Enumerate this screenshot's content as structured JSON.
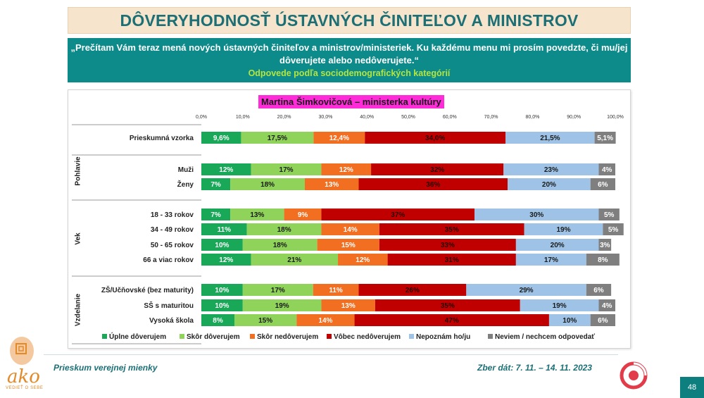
{
  "header": {
    "title": "DÔVERYHODNOSŤ ÚSTAVNÝCH ČINITEĽOV A MINISTROV",
    "question": "„Prečítam Vám teraz mená nových ústavných činiteľov a ministrov/ministeriek. Ku každému menu mi prosím povedzte, či mu/jej dôverujete alebo nedôverujete.“",
    "subtitle": "Odpovede podľa sociodemografických kategórií"
  },
  "chart_data": {
    "type": "bar",
    "orientation": "horizontal",
    "stacked": true,
    "percent_stacked": true,
    "title": "Martina Šimkovičová – ministerka kultúry",
    "xlim": [
      0,
      100
    ],
    "x_ticks": [
      "0,0%",
      "10,0%",
      "20,0%",
      "30,0%",
      "40,0%",
      "50,0%",
      "60,0%",
      "70,0%",
      "80,0%",
      "90,0%",
      "100,0%"
    ],
    "legend_position": "bottom",
    "series": [
      {
        "name": "Úplne dôverujem",
        "color": "#18a857"
      },
      {
        "name": "Skôr dôverujem",
        "color": "#8fd35a"
      },
      {
        "name": "Skôr nedôverujem",
        "color": "#f26f22"
      },
      {
        "name": "Vôbec nedôverujem",
        "color": "#c00000"
      },
      {
        "name": "Nepoznám ho/ju",
        "color": "#9ec3e6"
      },
      {
        "name": "Neviem / nechcem odpovedať",
        "color": "#7f7f7f"
      }
    ],
    "groups": [
      {
        "name": "",
        "rows": [
          {
            "label": "Prieskumná vzorka",
            "values": [
              9.6,
              17.5,
              12.4,
              34.0,
              21.5,
              5.1
            ],
            "labels": [
              "9,6%",
              "17,5%",
              "12,4%",
              "34,0%",
              "21,5%",
              "5,1%"
            ]
          }
        ]
      },
      {
        "name": "Pohlavie",
        "rows": [
          {
            "label": "Muži",
            "values": [
              12,
              17,
              12,
              32,
              23,
              4
            ],
            "labels": [
              "12%",
              "17%",
              "12%",
              "32%",
              "23%",
              "4%"
            ]
          },
          {
            "label": "Ženy",
            "values": [
              7,
              18,
              13,
              36,
              20,
              6
            ],
            "labels": [
              "7%",
              "18%",
              "13%",
              "36%",
              "20%",
              "6%"
            ]
          }
        ]
      },
      {
        "name": "Vek",
        "rows": [
          {
            "label": "18 - 33 rokov",
            "values": [
              7,
              13,
              9,
              37,
              30,
              5
            ],
            "labels": [
              "7%",
              "13%",
              "9%",
              "37%",
              "30%",
              "5%"
            ]
          },
          {
            "label": "34 - 49 rokov",
            "values": [
              11,
              18,
              14,
              35,
              19,
              5
            ],
            "labels": [
              "11%",
              "18%",
              "14%",
              "35%",
              "19%",
              "5%"
            ]
          },
          {
            "label": "50 - 65 rokov",
            "values": [
              10,
              18,
              15,
              33,
              20,
              3
            ],
            "labels": [
              "10%",
              "18%",
              "15%",
              "33%",
              "20%",
              "3%"
            ]
          },
          {
            "label": "66 a viac rokov",
            "values": [
              12,
              21,
              12,
              31,
              17,
              8
            ],
            "labels": [
              "12%",
              "21%",
              "12%",
              "31%",
              "17%",
              "8%"
            ]
          }
        ]
      },
      {
        "name": "Vzdelanie",
        "rows": [
          {
            "label": "ZŠ/Učňovské (bez maturity)",
            "values": [
              10,
              17,
              11,
              26,
              29,
              6
            ],
            "labels": [
              "10%",
              "17%",
              "11%",
              "26%",
              "29%",
              "6%"
            ]
          },
          {
            "label": "SŠ s maturitou",
            "values": [
              10,
              19,
              13,
              35,
              19,
              4
            ],
            "labels": [
              "10%",
              "19%",
              "13%",
              "35%",
              "19%",
              "4%"
            ]
          },
          {
            "label": "Vysoká škola",
            "values": [
              8,
              15,
              14,
              47,
              10,
              6
            ],
            "labels": [
              "8%",
              "15%",
              "14%",
              "47%",
              "10%",
              "6%"
            ]
          }
        ]
      }
    ]
  },
  "footer": {
    "survey": "Prieskum verejnej mienky",
    "dates": "Zber dát: 7. 11. – 14. 11. 2023",
    "page": "48",
    "logo_text": "ako",
    "logo_sub": "VEDIEŤ O SEBE"
  }
}
